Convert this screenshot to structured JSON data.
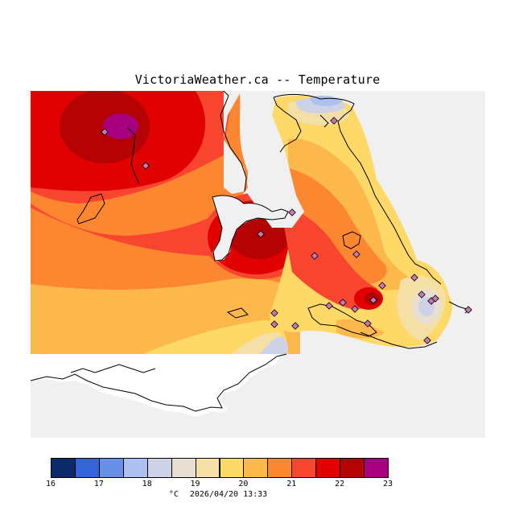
{
  "title": "VictoriaWeather.ca -- Temperature",
  "legend": {
    "bins": [
      {
        "from": 16.0,
        "color": "#0c2a6a"
      },
      {
        "from": 16.5,
        "color": "#3365d8"
      },
      {
        "from": 17.0,
        "color": "#6790e6"
      },
      {
        "from": 17.5,
        "color": "#adc0f2"
      },
      {
        "from": 18.0,
        "color": "#cdd2e6"
      },
      {
        "from": 18.5,
        "color": "#e8dfd2"
      },
      {
        "from": 19.0,
        "color": "#f4e0a6"
      },
      {
        "from": 19.5,
        "color": "#fed967"
      },
      {
        "from": 20.0,
        "color": "#fdb84b"
      },
      {
        "from": 20.5,
        "color": "#fd8731"
      },
      {
        "from": 21.0,
        "color": "#f84530"
      },
      {
        "from": 21.5,
        "color": "#e10101"
      },
      {
        "from": 22.0,
        "color": "#b50202"
      },
      {
        "from": 22.5,
        "color": "#a80080"
      }
    ],
    "tick_labels": [
      "16",
      "17",
      "18",
      "19",
      "20",
      "21",
      "22",
      "23"
    ]
  },
  "caption": {
    "unit": "°C",
    "timestamp": "2026/04/20 13:33"
  },
  "colors": {
    "ocean": "#f0f0f0",
    "land_no_data": "#ffffff",
    "coastline": "#000000",
    "station_marker": "#c47ab0"
  }
}
